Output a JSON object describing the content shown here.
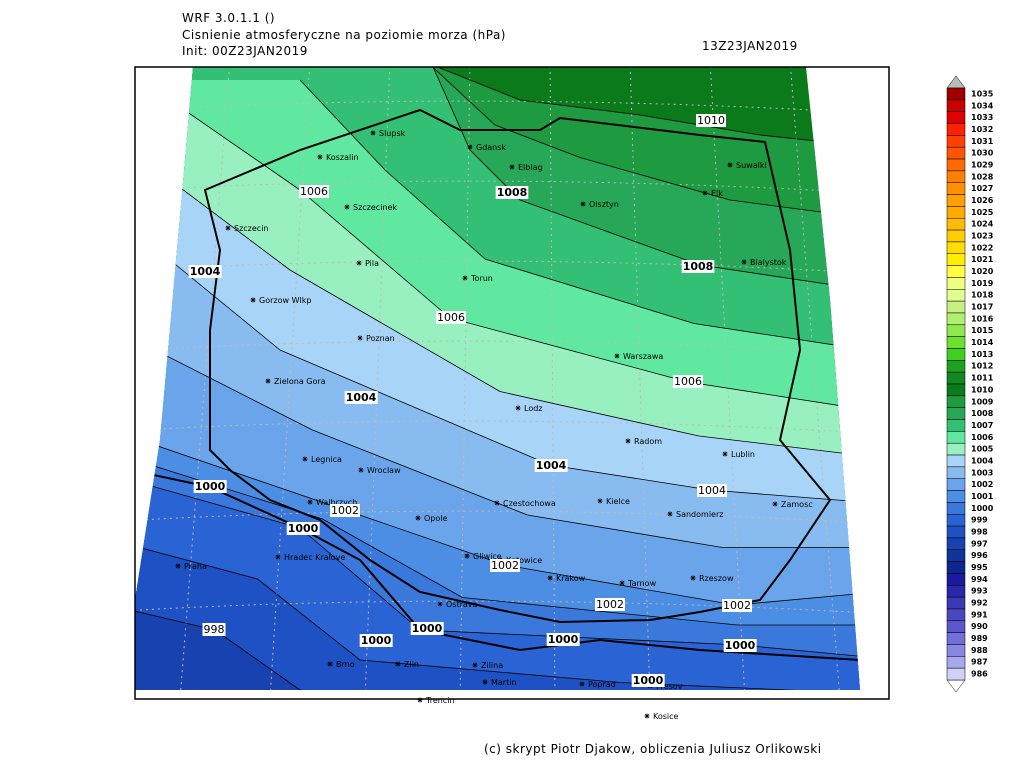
{
  "header": {
    "model": "WRF 3.0.1.1 ()",
    "title": "Cisnienie atmosferyczne na poziomie morza (hPa)",
    "init": "Init: 00Z23JAN2019",
    "valid": "13Z23JAN2019"
  },
  "map": {
    "cities": [
      "Slupsk",
      "Koszalin",
      "Gdansk",
      "Elblag",
      "Olsztyn",
      "Suwalki",
      "Elk",
      "Szczecinek",
      "Szczecin",
      "Bialystok",
      "Pila",
      "Torun",
      "Gorzow Wlkp",
      "Poznan",
      "Warszawa",
      "Zielona Gora",
      "Lodz",
      "Radom",
      "Lublin",
      "Legnica",
      "Wroclaw",
      "Czestochowa",
      "Kielce",
      "Sandomierz",
      "Zamosc",
      "Walbrzych",
      "Opole",
      "Hradec Kralove",
      "Gliwice",
      "Katowice",
      "Praha",
      "Krakow",
      "Tarnow",
      "Rzeszow",
      "Ostrava",
      "Brno",
      "Zlin",
      "Zilina",
      "Martin",
      "Poprad",
      "Presov",
      "Trencin",
      "Kosice"
    ],
    "contour_labels": [
      1010,
      1008,
      1008,
      1006,
      1006,
      1006,
      1004,
      1004,
      1004,
      1004,
      1002,
      1002,
      1002,
      1002,
      1000,
      1000,
      1000,
      1000,
      1000,
      1000,
      1000,
      998
    ]
  },
  "colorbar": {
    "levels": [
      1035,
      1034,
      1033,
      1032,
      1031,
      1030,
      1029,
      1028,
      1027,
      1026,
      1025,
      1024,
      1023,
      1022,
      1021,
      1020,
      1019,
      1018,
      1017,
      1016,
      1015,
      1014,
      1013,
      1012,
      1011,
      1010,
      1009,
      1008,
      1007,
      1006,
      1005,
      1004,
      1003,
      1002,
      1001,
      1000,
      999,
      998,
      997,
      996,
      995,
      994,
      993,
      992,
      991,
      990,
      989,
      988,
      987,
      986
    ],
    "colors": [
      "#a00000",
      "#c80000",
      "#e00000",
      "#ff2000",
      "#ff4000",
      "#ff5500",
      "#ff6a00",
      "#ff7f00",
      "#ff9000",
      "#ffa000",
      "#ffaa00",
      "#ffbb00",
      "#ffcc00",
      "#ffdd00",
      "#ffee00",
      "#ffff40",
      "#f0ff80",
      "#e0ff90",
      "#c8f080",
      "#b0f070",
      "#90e850",
      "#70e030",
      "#40d020",
      "#20a020",
      "#108a20",
      "#0a7a1a",
      "#1e9a40",
      "#26a858",
      "#34c074",
      "#60e8a0",
      "#98f0c0",
      "#a8d4f8",
      "#88bcf0",
      "#6aa4ea",
      "#4c8ee4",
      "#3a78dc",
      "#2a64d4",
      "#1e52c4",
      "#1842b0",
      "#10349c",
      "#0c2890",
      "#1a1aa0",
      "#2a28a8",
      "#3a38b4",
      "#4a48c0",
      "#5a58cc",
      "#7070d8",
      "#8888e0",
      "#a8a8ec",
      "#d0d0f8"
    ]
  },
  "footer": "(c) skrypt Piotr Djakow, obliczenia Juliusz Orlikowski"
}
